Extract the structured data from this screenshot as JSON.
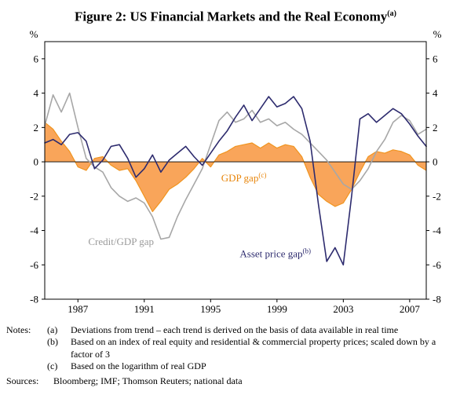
{
  "title": {
    "text": "Figure 2: US Financial Markets and the Real Economy",
    "sup": "(a)"
  },
  "chart_data": {
    "type": "line",
    "title": "US Financial Markets and the Real Economy",
    "unit_left": "%",
    "unit_right": "%",
    "xlim": [
      1985,
      2008
    ],
    "ylim": [
      -8,
      7
    ],
    "yticks": [
      -8,
      -6,
      -4,
      -2,
      0,
      2,
      4,
      6
    ],
    "xticks": [
      1987,
      1991,
      1995,
      1999,
      2003,
      2007
    ],
    "grid": false,
    "legend_position": "in-plot-annotations",
    "x": [
      1985,
      1985.5,
      1986,
      1986.5,
      1987,
      1987.5,
      1988,
      1988.5,
      1989,
      1989.5,
      1990,
      1990.5,
      1991,
      1991.5,
      1992,
      1992.5,
      1993,
      1993.5,
      1994,
      1994.5,
      1995,
      1995.5,
      1996,
      1996.5,
      1997,
      1997.5,
      1998,
      1998.5,
      1999,
      1999.5,
      2000,
      2000.5,
      2001,
      2001.5,
      2002,
      2002.5,
      2003,
      2003.5,
      2004,
      2004.5,
      2005,
      2005.5,
      2006,
      2006.5,
      2007,
      2007.5,
      2008
    ],
    "series": [
      {
        "name": "GDP gap",
        "style": "area",
        "color": "#F9A55A",
        "stroke": "#F0941F",
        "values": [
          2.3,
          1.9,
          1.2,
          0.6,
          -0.3,
          -0.5,
          0.2,
          0.3,
          -0.2,
          -0.5,
          -0.4,
          -1.1,
          -2.0,
          -2.9,
          -2.3,
          -1.6,
          -1.3,
          -0.9,
          -0.4,
          0.2,
          -0.3,
          0.4,
          0.6,
          0.9,
          1.0,
          1.1,
          0.8,
          1.1,
          0.8,
          1.0,
          0.9,
          0.3,
          -0.9,
          -1.9,
          -2.3,
          -2.6,
          -2.4,
          -1.6,
          -0.6,
          0.3,
          0.6,
          0.5,
          0.7,
          0.6,
          0.4,
          -0.2,
          -0.5
        ]
      },
      {
        "name": "Credit/GDP gap",
        "style": "line",
        "color": "#A7A7A7",
        "values": [
          2.1,
          3.9,
          2.9,
          4.0,
          2.0,
          0.2,
          -0.3,
          -0.6,
          -1.5,
          -2.0,
          -2.3,
          -2.1,
          -2.4,
          -3.2,
          -4.5,
          -4.4,
          -3.2,
          -2.2,
          -1.3,
          -0.4,
          1.0,
          2.4,
          2.9,
          2.3,
          2.5,
          3.0,
          2.3,
          2.5,
          2.1,
          2.3,
          1.9,
          1.6,
          1.1,
          0.6,
          0.1,
          -0.6,
          -1.3,
          -1.6,
          -1.1,
          -0.4,
          0.6,
          1.3,
          2.3,
          2.7,
          2.4,
          1.6,
          1.9
        ]
      },
      {
        "name": "Asset price gap",
        "style": "line",
        "color": "#2D2B6E",
        "values": [
          1.1,
          1.3,
          1.0,
          1.6,
          1.7,
          1.2,
          -0.4,
          0.1,
          0.9,
          1.0,
          0.2,
          -0.9,
          -0.4,
          0.4,
          -0.6,
          0.1,
          0.5,
          0.9,
          0.3,
          -0.2,
          0.5,
          1.2,
          1.8,
          2.6,
          3.3,
          2.4,
          3.1,
          3.8,
          3.2,
          3.4,
          3.8,
          3.1,
          1.2,
          -2.5,
          -5.8,
          -5.0,
          -6.0,
          -2.0,
          2.5,
          2.8,
          2.3,
          2.7,
          3.1,
          2.8,
          2.2,
          1.5,
          0.9
        ]
      }
    ],
    "annotations": [
      {
        "text": "GDP gap",
        "sup": "(c)",
        "x": 1997.0,
        "y": -1.15,
        "color": "#E8860C",
        "anchor": "middle"
      },
      {
        "text": "Credit/GDP gap",
        "sup": "",
        "x": 1989.6,
        "y": -4.85,
        "color": "#9B9B9B",
        "anchor": "middle"
      },
      {
        "text": "Asset price gap",
        "sup": "(b)",
        "x": 1998.9,
        "y": -5.55,
        "color": "#2D2B6E",
        "anchor": "middle"
      }
    ]
  },
  "notes": {
    "label": "Notes:",
    "items": [
      {
        "tag": "(a)",
        "text": "Deviations from trend – each trend is derived on the basis of data available in real time"
      },
      {
        "tag": "(b)",
        "text": "Based on an index of real equity and residential & commercial property prices; scaled down by a factor of 3"
      },
      {
        "tag": "(c)",
        "text": "Based on the logarithm of real GDP"
      }
    ]
  },
  "sources": {
    "label": "Sources:",
    "text": "Bloomberg; IMF; Thomson Reuters; national data"
  }
}
